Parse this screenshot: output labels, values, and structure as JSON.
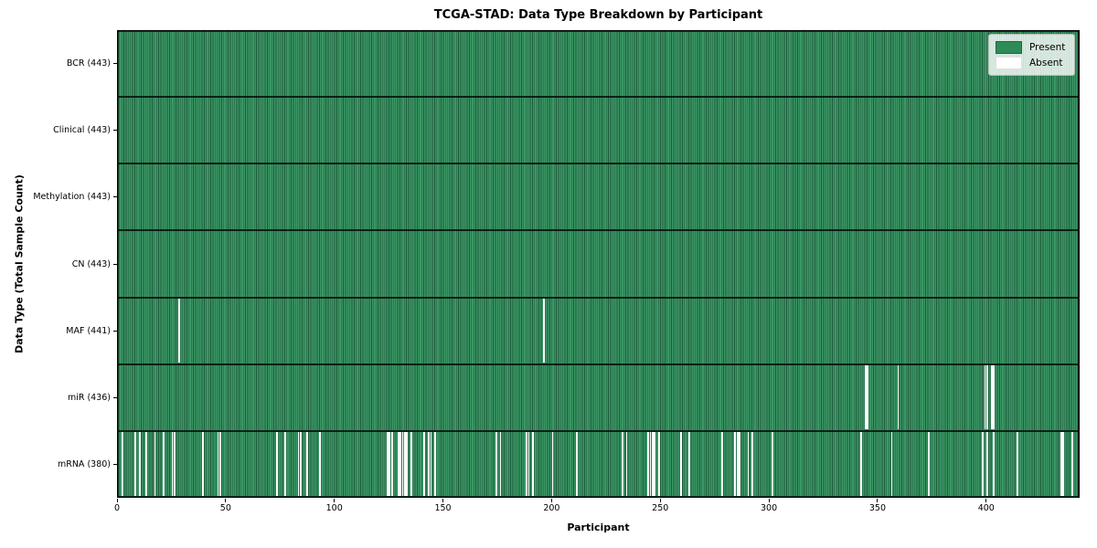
{
  "chart_data": {
    "type": "heatmap",
    "title": "TCGA-STAD: Data Type Breakdown by Participant",
    "xlabel": "Participant",
    "ylabel": "Data Type (Total Sample Count)",
    "n_participants": 443,
    "x_ticks": [
      0,
      50,
      100,
      150,
      200,
      250,
      300,
      350,
      400
    ],
    "legend_position": "upper right",
    "grid": false,
    "colors": {
      "present": "#2e8b57",
      "present_edge": "#1d5a3a",
      "absent": "#ffffff",
      "row_separator": "#000000"
    },
    "legend": [
      {
        "label": "Present",
        "color": "#2e8b57"
      },
      {
        "label": "Absent",
        "color": "#ffffff"
      }
    ],
    "rows": [
      {
        "label": "BCR (443)",
        "data_type": "BCR",
        "total": 443,
        "absent": []
      },
      {
        "label": "Clinical (443)",
        "data_type": "Clinical",
        "total": 443,
        "absent": []
      },
      {
        "label": "Methylation (443)",
        "data_type": "Methylation",
        "total": 443,
        "absent": []
      },
      {
        "label": "CN (443)",
        "data_type": "CN",
        "total": 443,
        "absent": []
      },
      {
        "label": "MAF (441)",
        "data_type": "MAF",
        "total": 441,
        "absent": [
          28,
          196
        ]
      },
      {
        "label": "miR (436)",
        "data_type": "miR",
        "total": 436,
        "absent": [
          344,
          345,
          359,
          399,
          400,
          402,
          403
        ]
      },
      {
        "label": "mRNA (380)",
        "data_type": "mRNA",
        "total": 380,
        "absent": [
          2,
          8,
          10,
          13,
          17,
          21,
          25,
          26,
          39,
          46,
          47,
          73,
          77,
          83,
          84,
          87,
          93,
          124,
          125,
          126,
          129,
          130,
          131,
          132,
          133,
          135,
          141,
          143,
          144,
          146,
          174,
          176,
          188,
          189,
          191,
          200,
          211,
          232,
          234,
          244,
          245,
          246,
          247,
          249,
          259,
          263,
          278,
          284,
          285,
          286,
          290,
          292,
          301,
          342,
          356,
          373,
          398,
          400,
          403,
          414,
          434,
          435,
          439
        ]
      }
    ]
  }
}
